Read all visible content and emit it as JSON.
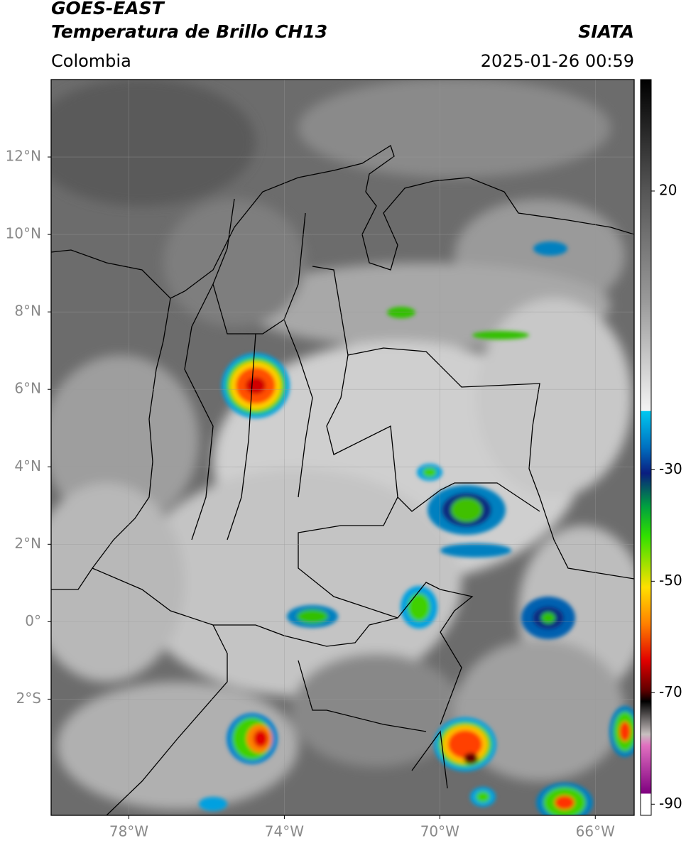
{
  "header": {
    "title": "GOES-EAST",
    "subtitle": "Temperatura de Brillo CH13",
    "source": "SIATA",
    "region": "Colombia",
    "datetime": "2025-01-26 00:59"
  },
  "map": {
    "xlim": [
      -80,
      -65
    ],
    "ylim": [
      -5,
      14
    ],
    "yticks": [
      {
        "value": 12,
        "label": "12°N"
      },
      {
        "value": 10,
        "label": "10°N"
      },
      {
        "value": 8,
        "label": "8°N"
      },
      {
        "value": 6,
        "label": "6°N"
      },
      {
        "value": 4,
        "label": "4°N"
      },
      {
        "value": 2,
        "label": "2°N"
      },
      {
        "value": 0,
        "label": "0°"
      },
      {
        "value": -2,
        "label": "2°S"
      }
    ],
    "xticks": [
      {
        "value": -78,
        "label": "78°W"
      },
      {
        "value": -74,
        "label": "74°W"
      },
      {
        "value": -70,
        "label": "70°W"
      },
      {
        "value": -66,
        "label": "66°W"
      }
    ]
  },
  "colorbar": {
    "lim": [
      -92,
      40
    ],
    "ticks": [
      20,
      -30,
      -50,
      -70,
      -90
    ]
  }
}
